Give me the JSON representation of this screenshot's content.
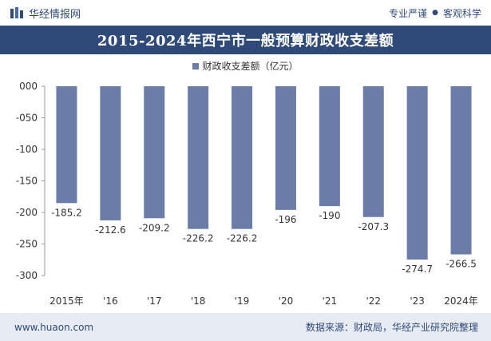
{
  "header": {
    "brand_name": "华经情报网",
    "tag_left": "专业严谨",
    "tag_separator": "●",
    "tag_right": "客观科学"
  },
  "title": "2015-2024年西宁市一般预算财政收支差额",
  "footer": {
    "url": "www.huaon.com",
    "source": "数据来源：财政局，华经产业研究院整理"
  },
  "colors": {
    "primary": "#2f4a78",
    "bar": "#6c7ca9",
    "footer_bg": "#e7ebf3"
  },
  "chart_data": {
    "type": "bar",
    "categories": [
      "2015年",
      "'16",
      "'17",
      "'18",
      "'19",
      "'20",
      "'21",
      "'22",
      "'23",
      "2024年"
    ],
    "series": [
      {
        "name": "财政收支差额（亿元）",
        "values": [
          -185.2,
          -212.6,
          -209.2,
          -226.2,
          -226.2,
          -196,
          -190,
          -207.3,
          -274.7,
          -266.5
        ]
      }
    ],
    "data_labels": [
      "-185.2",
      "-212.6",
      "-209.2",
      "-226.2",
      "-226.2",
      "-196",
      "-190",
      "-207.3",
      "-274.7",
      "-266.5"
    ],
    "y_ticks": [
      "000",
      "-050",
      "-100",
      "-150",
      "-200",
      "-250",
      "-300"
    ],
    "y_tick_values": [
      0,
      -50,
      -100,
      -150,
      -200,
      -250,
      -300
    ],
    "ylim": [
      -300,
      0
    ],
    "legend_position": "top-center",
    "grid": false
  }
}
